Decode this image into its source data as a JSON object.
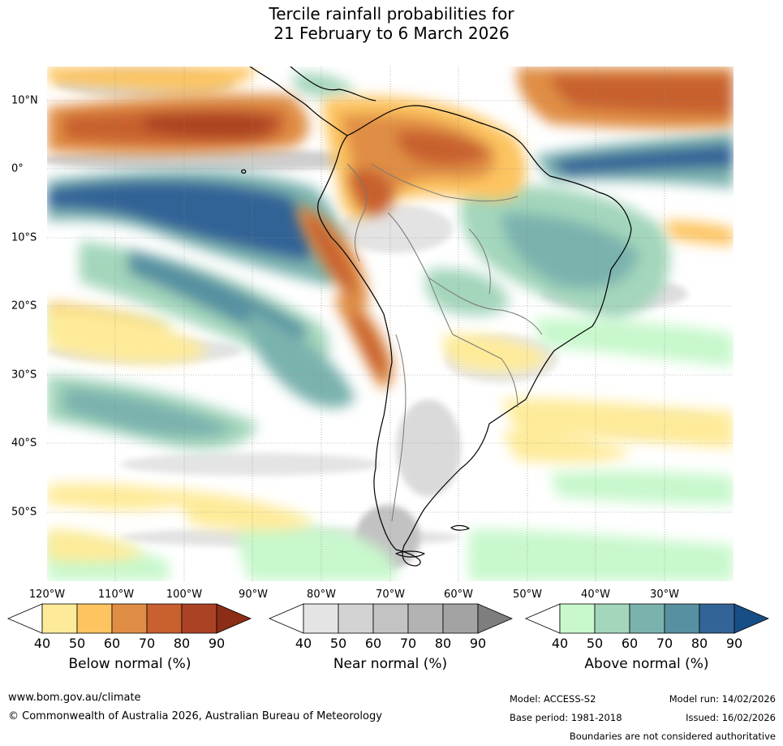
{
  "title": {
    "line1": "Tercile rainfall probabilities for",
    "line2": "21 February to 6 March 2026"
  },
  "axes": {
    "lat_labels": [
      {
        "text": "10°N",
        "lat": 10
      },
      {
        "text": "0°",
        "lat": 0
      },
      {
        "text": "10°S",
        "lat": -10
      },
      {
        "text": "20°S",
        "lat": -20
      },
      {
        "text": "30°S",
        "lat": -30
      },
      {
        "text": "40°S",
        "lat": -40
      },
      {
        "text": "50°S",
        "lat": -50
      }
    ],
    "lon_labels": [
      {
        "text": "120°W",
        "lon": -120
      },
      {
        "text": "110°W",
        "lon": -110
      },
      {
        "text": "100°W",
        "lon": -100
      },
      {
        "text": "90°W",
        "lon": -90
      },
      {
        "text": "80°W",
        "lon": -80
      },
      {
        "text": "70°W",
        "lon": -70
      },
      {
        "text": "60°W",
        "lon": -60
      },
      {
        "text": "50°W",
        "lon": -50
      },
      {
        "text": "40°W",
        "lon": -40
      },
      {
        "text": "30°W",
        "lon": -30
      }
    ],
    "lon_range": [
      -120,
      -20
    ],
    "lat_range": [
      -60,
      15
    ],
    "gridlines": true
  },
  "legends": [
    {
      "id": "below",
      "title": "Below normal (%)",
      "ticks": [
        "40",
        "50",
        "60",
        "70",
        "80",
        "90"
      ],
      "colors": [
        "#ffffff",
        "#feeb9a",
        "#fdc460",
        "#e08e45",
        "#c8602f",
        "#ac4224",
        "#8c2d16"
      ]
    },
    {
      "id": "near",
      "title": "Near normal (%)",
      "ticks": [
        "40",
        "50",
        "60",
        "70",
        "80",
        "90"
      ],
      "colors": [
        "#ffffff",
        "#e4e4e4",
        "#d3d3d3",
        "#c3c3c3",
        "#b3b3b3",
        "#a3a3a3",
        "#7e7e7e"
      ]
    },
    {
      "id": "above",
      "title": "Above normal (%)",
      "ticks": [
        "40",
        "50",
        "60",
        "70",
        "80",
        "90"
      ],
      "colors": [
        "#ffffff",
        "#c8f8cc",
        "#a3d6bb",
        "#7ab2ae",
        "#5791a1",
        "#326497",
        "#174e86"
      ]
    }
  ],
  "footer": {
    "website": "www.bom.gov.au/climate",
    "copyright": "© Commonwealth of Australia 2026, Australian Bureau of Meteorology",
    "model": "Model: ACCESS-S2",
    "base_period": "Base period: 1981-2018",
    "model_run": "Model run: 14/02/2026",
    "issued": "Issued: 16/02/2026",
    "disclaimer": "Boundaries are not considered authoritative"
  }
}
